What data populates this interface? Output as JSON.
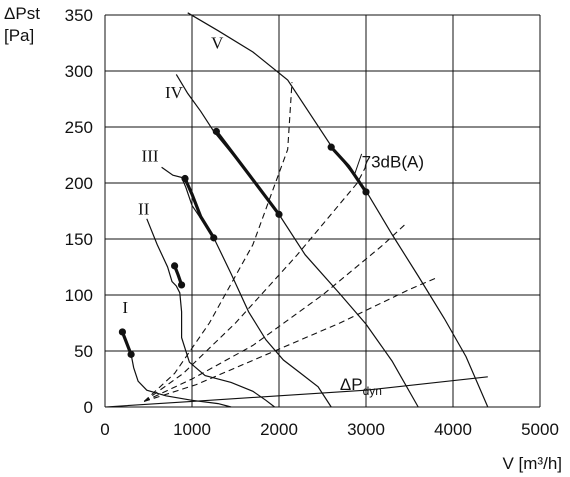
{
  "chart_data": {
    "type": "line",
    "xlabel": "V [m³/h]",
    "ylabel_line1": "ΔPst",
    "ylabel_line2": "[Pa]",
    "xlim": [
      0,
      5000
    ],
    "ylim": [
      0,
      350
    ],
    "xticks": [
      0,
      1000,
      2000,
      3000,
      4000,
      5000
    ],
    "yticks": [
      0,
      50,
      100,
      150,
      200,
      250,
      300,
      350
    ],
    "grid": true,
    "colors": {
      "line": "#111111",
      "grid": "#111111"
    },
    "fan_curves": [
      {
        "name": "I",
        "label_at": [
          200,
          84
        ],
        "points": [
          [
            200,
            68
          ],
          [
            260,
            55
          ],
          [
            300,
            47
          ],
          [
            330,
            35
          ],
          [
            380,
            23
          ],
          [
            480,
            15
          ],
          [
            700,
            10
          ],
          [
            1000,
            6
          ],
          [
            1300,
            3
          ],
          [
            1450,
            0
          ]
        ]
      },
      {
        "name": "II",
        "label_at": [
          380,
          172
        ],
        "points": [
          [
            480,
            168
          ],
          [
            600,
            145
          ],
          [
            720,
            125
          ],
          [
            770,
            112
          ],
          [
            820,
            108
          ],
          [
            860,
            102
          ],
          [
            880,
            85
          ],
          [
            880,
            62
          ],
          [
            970,
            40
          ],
          [
            1150,
            28
          ],
          [
            1450,
            22
          ],
          [
            1700,
            14
          ],
          [
            1850,
            6
          ],
          [
            1950,
            0
          ]
        ]
      },
      {
        "name": "III",
        "label_at": [
          420,
          219
        ],
        "points": [
          [
            650,
            214
          ],
          [
            780,
            207
          ],
          [
            880,
            205
          ],
          [
            930,
            196
          ],
          [
            1000,
            180
          ],
          [
            1250,
            151
          ],
          [
            1450,
            119
          ],
          [
            1650,
            85
          ],
          [
            1850,
            60
          ],
          [
            2050,
            42
          ],
          [
            2250,
            30
          ],
          [
            2450,
            18
          ],
          [
            2600,
            0
          ]
        ]
      },
      {
        "name": "IV",
        "label_at": [
          690,
          276
        ],
        "points": [
          [
            820,
            297
          ],
          [
            950,
            280
          ],
          [
            1100,
            264
          ],
          [
            1250,
            246
          ],
          [
            1650,
            208
          ],
          [
            2000,
            172
          ],
          [
            2300,
            136
          ],
          [
            2700,
            101
          ],
          [
            3000,
            74
          ],
          [
            3300,
            41
          ],
          [
            3600,
            0
          ]
        ]
      },
      {
        "name": "V",
        "label_at": [
          1220,
          320
        ],
        "points": [
          [
            950,
            352
          ],
          [
            1300,
            336
          ],
          [
            1700,
            317
          ],
          [
            2100,
            292
          ],
          [
            2600,
            233
          ],
          [
            3000,
            193
          ],
          [
            3300,
            154
          ],
          [
            3600,
            117
          ],
          [
            3900,
            79
          ],
          [
            4150,
            45
          ],
          [
            4400,
            0
          ]
        ]
      }
    ],
    "operating_segments": [
      {
        "curve": "I",
        "points": [
          [
            200,
            67
          ],
          [
            260,
            55
          ],
          [
            300,
            47
          ]
        ]
      },
      {
        "curve": "II",
        "points": [
          [
            800,
            126
          ],
          [
            840,
            118
          ],
          [
            880,
            109
          ]
        ]
      },
      {
        "curve": "III",
        "points": [
          [
            920,
            204
          ],
          [
            1000,
            190
          ],
          [
            1100,
            170
          ],
          [
            1250,
            151
          ]
        ]
      },
      {
        "curve": "IV",
        "points": [
          [
            1280,
            246
          ],
          [
            1650,
            208
          ],
          [
            2000,
            172
          ]
        ]
      },
      {
        "curve": "V",
        "points": [
          [
            2600,
            232
          ],
          [
            2800,
            215
          ],
          [
            3000,
            192
          ]
        ]
      }
    ],
    "operating_points": [
      [
        200,
        67
      ],
      [
        300,
        47
      ],
      [
        800,
        126
      ],
      [
        880,
        109
      ],
      [
        920,
        204
      ],
      [
        1250,
        151
      ],
      [
        1280,
        246
      ],
      [
        2000,
        172
      ],
      [
        2600,
        232
      ],
      [
        3000,
        192
      ]
    ],
    "system_curves": [
      {
        "points": [
          [
            450,
            5
          ],
          [
            800,
            30
          ],
          [
            1200,
            75
          ],
          [
            1700,
            145
          ],
          [
            2100,
            230
          ],
          [
            2150,
            290
          ]
        ]
      },
      {
        "points": [
          [
            450,
            5
          ],
          [
            900,
            30
          ],
          [
            1500,
            75
          ],
          [
            2200,
            135
          ],
          [
            2900,
            200
          ],
          [
            3000,
            215
          ]
        ]
      },
      {
        "points": [
          [
            450,
            5
          ],
          [
            1000,
            25
          ],
          [
            1700,
            55
          ],
          [
            2500,
            100
          ],
          [
            3200,
            145
          ],
          [
            3450,
            163
          ]
        ]
      },
      {
        "points": [
          [
            450,
            5
          ],
          [
            1050,
            20
          ],
          [
            1800,
            45
          ],
          [
            2700,
            75
          ],
          [
            3500,
            105
          ],
          [
            3800,
            115
          ]
        ]
      }
    ],
    "dynamic_pressure_line": {
      "label": "ΔPdyn",
      "label_main": "ΔP",
      "label_sub": "dyn",
      "label_at": [
        2700,
        15
      ],
      "points": [
        [
          0,
          0
        ],
        [
          1000,
          5
        ],
        [
          2000,
          10
        ],
        [
          3000,
          15
        ],
        [
          4400,
          27
        ]
      ]
    },
    "annotation": {
      "text": "73dB(A)",
      "at": [
        2950,
        214
      ],
      "pointer": [
        [
          2870,
          208
        ],
        [
          2950,
          226
        ]
      ]
    }
  }
}
